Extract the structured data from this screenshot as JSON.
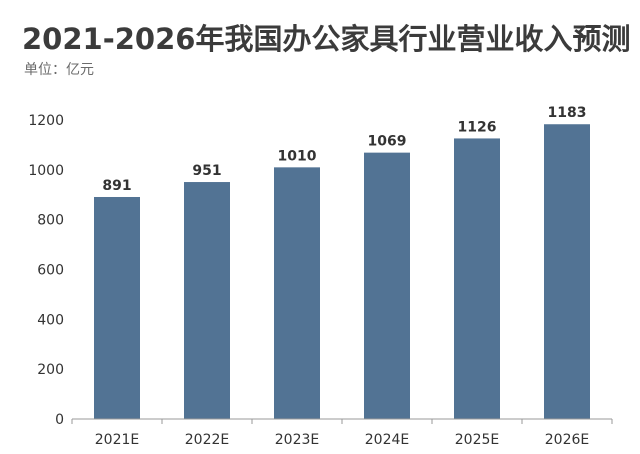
{
  "title": "2021-2026年我国办公家具行业营业收入预测",
  "unit_label": "单位：亿元",
  "colors": {
    "bar": "#527394",
    "axis": "#9a9a9a",
    "text": "#333333"
  },
  "chart_data": {
    "type": "bar",
    "title": "2021-2026年我国办公家具行业营业收入预测",
    "xlabel": "",
    "ylabel": "",
    "categories": [
      "2021E",
      "2022E",
      "2023E",
      "2024E",
      "2025E",
      "2026E"
    ],
    "values": [
      891,
      951,
      1010,
      1069,
      1126,
      1183
    ],
    "ylim": [
      0,
      1200
    ],
    "yticks": [
      0,
      200,
      400,
      600,
      800,
      1000,
      1200
    ],
    "grid": false,
    "legend": "none"
  }
}
